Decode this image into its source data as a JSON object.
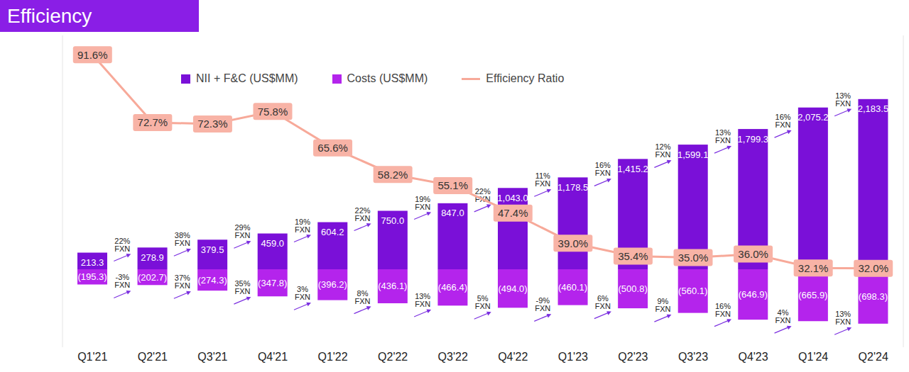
{
  "chart_data": {
    "type": "bar",
    "title": "Efficiency",
    "categories": [
      "Q1'21",
      "Q2'21",
      "Q3'21",
      "Q4'21",
      "Q1'22",
      "Q2'22",
      "Q3'22",
      "Q4'22",
      "Q1'23",
      "Q2'23",
      "Q3'23",
      "Q4'23",
      "Q1'24",
      "Q2'24"
    ],
    "series": [
      {
        "name": "NII + F&C (US$MM)",
        "type": "bar",
        "color": "#7a10d8",
        "values": [
          213.3,
          278.9,
          379.5,
          459.0,
          604.2,
          750.0,
          847.0,
          1043.0,
          1178.5,
          1415.2,
          1599.1,
          1799.3,
          2075.2,
          2183.5
        ],
        "value_labels": [
          "213.3",
          "278.9",
          "379.5",
          "459.0",
          "604.2",
          "750.0",
          "847.0",
          "1,043.0",
          "1,178.5",
          "1,415.2",
          "1,599.1",
          "1,799.3",
          "2,075.2",
          "2,183.5"
        ],
        "growth_labels": [
          null,
          "22%",
          "38%",
          "29%",
          "19%",
          "22%",
          "19%",
          "22%",
          "11%",
          "16%",
          "12%",
          "13%",
          "16%",
          "13%"
        ],
        "growth_unit": "FXN"
      },
      {
        "name": "Costs (US$MM)",
        "type": "bar",
        "color": "#b424ec",
        "values": [
          -195.3,
          -202.7,
          -274.3,
          -347.8,
          -396.2,
          -436.1,
          -466.4,
          -494.0,
          -460.1,
          -500.8,
          -560.1,
          -646.9,
          -665.9,
          -698.3
        ],
        "value_labels": [
          "(195.3)",
          "(202.7)",
          "(274.3)",
          "(347.8)",
          "(396.2)",
          "(436.1)",
          "(466.4)",
          "(494.0)",
          "(460.1)",
          "(500.8)",
          "(560.1)",
          "(646.9)",
          "(665.9)",
          "(698.3)"
        ],
        "growth_labels": [
          null,
          "-3%",
          "37%",
          "35%",
          "3%",
          "8%",
          "13%",
          "5%",
          "-9%",
          "6%",
          "9%",
          "16%",
          "4%",
          "13%"
        ],
        "growth_unit": "FXN"
      },
      {
        "name": "Efficiency Ratio",
        "type": "line",
        "axis": "y2",
        "color": "#f7a999",
        "values": [
          91.6,
          72.7,
          72.3,
          75.8,
          65.6,
          58.2,
          55.1,
          47.4,
          39.0,
          35.4,
          35.0,
          36.0,
          32.1,
          32.0
        ],
        "value_labels": [
          "91.6%",
          "72.7%",
          "72.3%",
          "75.8%",
          "65.6%",
          "58.2%",
          "55.1%",
          "47.4%",
          "39.0%",
          "35.4%",
          "35.0%",
          "36.0%",
          "32.1%",
          "32.0%"
        ]
      }
    ],
    "ylim": [
      -1000,
      3000
    ],
    "y2lim": [
      10,
      97
    ],
    "data_labels": true,
    "tick_labels": "x",
    "legend": "top-left",
    "grid": false
  }
}
